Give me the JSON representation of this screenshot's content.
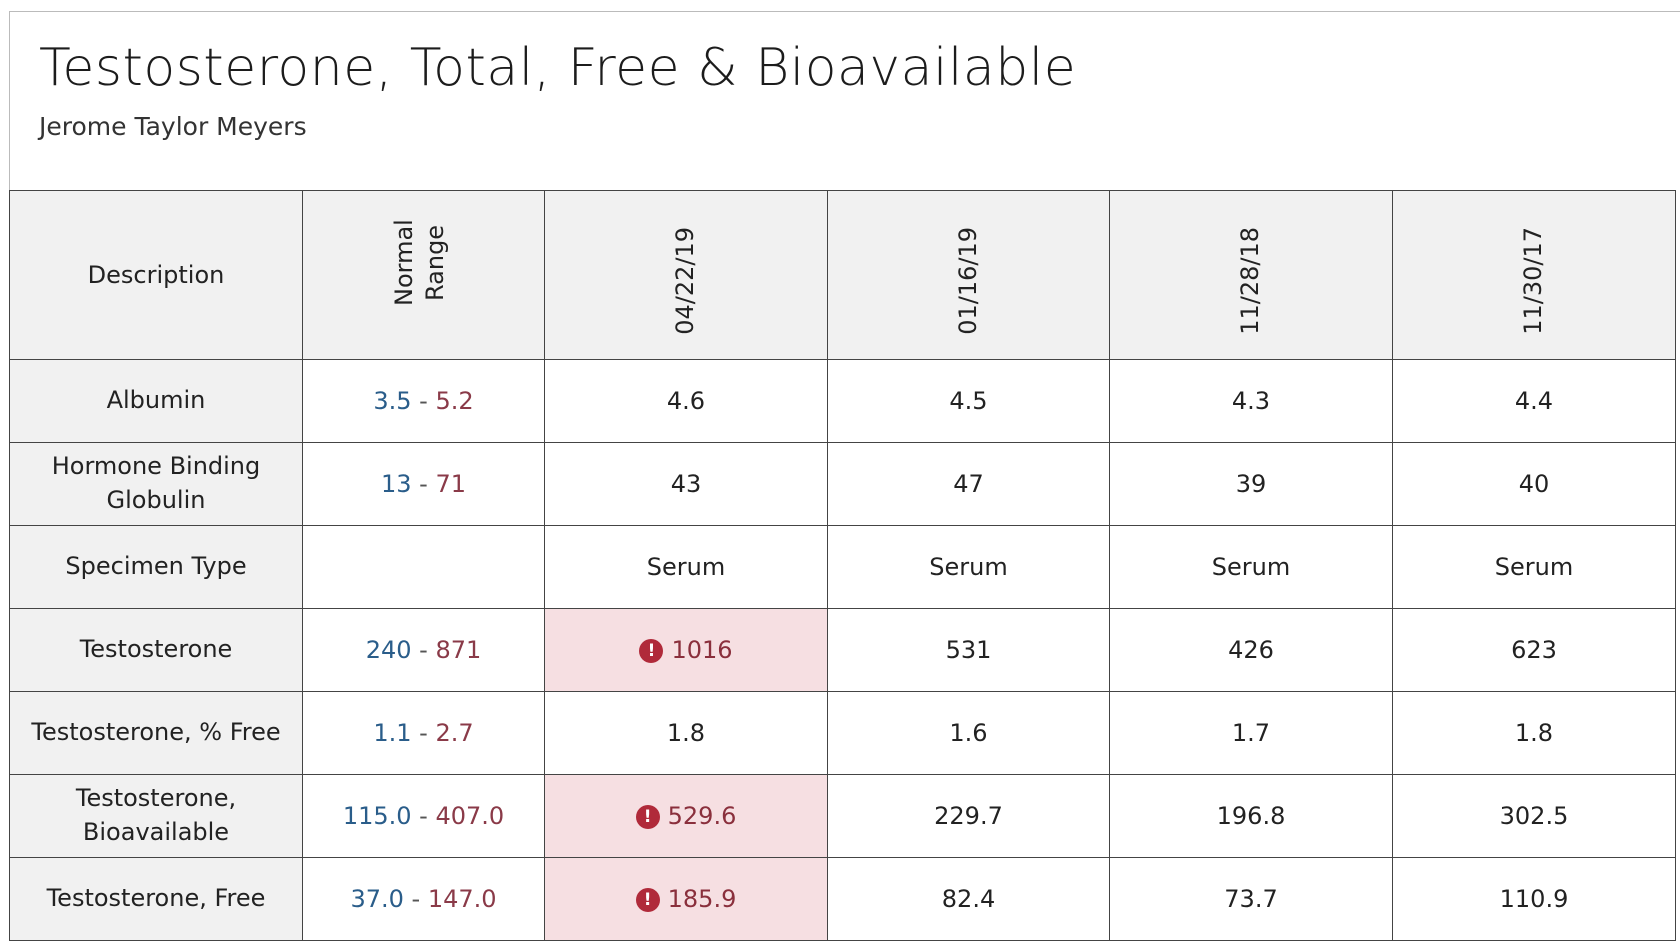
{
  "header": {
    "title": "Testosterone, Total, Free & Bioavailable",
    "subtitle": "Jerome Taylor Meyers"
  },
  "table": {
    "columns": [
      "Description",
      "Normal Range",
      "04/22/19",
      "01/16/19",
      "11/28/18",
      "11/30/17"
    ],
    "rows": [
      {
        "description": "Albumin",
        "range_low": "3.5",
        "range_high": "5.2",
        "values": [
          "4.6",
          "4.5",
          "4.3",
          "4.4"
        ],
        "flags": [
          false,
          false,
          false,
          false
        ]
      },
      {
        "description": "Hormone Binding Globulin",
        "range_low": "13",
        "range_high": "71",
        "values": [
          "43",
          "47",
          "39",
          "40"
        ],
        "flags": [
          false,
          false,
          false,
          false
        ]
      },
      {
        "description": "Specimen Type",
        "values": [
          "Serum",
          "Serum",
          "Serum",
          "Serum"
        ],
        "flags": [
          false,
          false,
          false,
          false
        ]
      },
      {
        "description": "Testosterone",
        "range_low": "240",
        "range_high": "871",
        "values": [
          "1016",
          "531",
          "426",
          "623"
        ],
        "flags": [
          true,
          false,
          false,
          false
        ]
      },
      {
        "description": "Testosterone, % Free",
        "range_low": "1.1",
        "range_high": "2.7",
        "values": [
          "1.8",
          "1.6",
          "1.7",
          "1.8"
        ],
        "flags": [
          false,
          false,
          false,
          false
        ]
      },
      {
        "description": "Testosterone, Bioavailable",
        "range_low": "115.0",
        "range_high": "407.0",
        "values": [
          "529.6",
          "229.7",
          "196.8",
          "302.5"
        ],
        "flags": [
          true,
          false,
          false,
          false
        ]
      },
      {
        "description": "Testosterone, Free",
        "range_low": "37.0",
        "range_high": "147.0",
        "values": [
          "185.9",
          "82.4",
          "73.7",
          "110.9"
        ],
        "flags": [
          true,
          false,
          false,
          false
        ]
      }
    ]
  }
}
